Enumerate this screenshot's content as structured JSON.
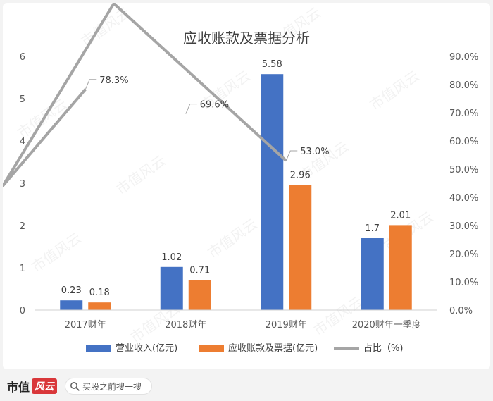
{
  "chart_data": {
    "type": "bar",
    "title": "应收账款及票据分析",
    "categories": [
      "2017财年",
      "2018财年",
      "2019财年",
      "2020财年一季度"
    ],
    "series": [
      {
        "name": "营业收入(亿元)",
        "type": "bar",
        "axis": "left",
        "color": "#4472c4",
        "values": [
          0.23,
          1.02,
          5.58,
          1.7
        ]
      },
      {
        "name": "应收账款及票据(亿元)",
        "type": "bar",
        "axis": "left",
        "color": "#ed7d31",
        "values": [
          0.18,
          0.71,
          2.96,
          2.01
        ]
      },
      {
        "name": "占比（%)",
        "type": "line",
        "axis": "right",
        "color": "#a5a5a5",
        "values": [
          78.3,
          69.6,
          53.0,
          null
        ]
      }
    ],
    "value_labels": {
      "营业收入(亿元)": [
        "0.23",
        "1.02",
        "5.58",
        "1.7"
      ],
      "应收账款及票据(亿元)": [
        "0.18",
        "0.71",
        "2.96",
        "2.01"
      ],
      "占比（%)": [
        "78.3%",
        "69.6%",
        "53.0%",
        ""
      ]
    },
    "y_left": {
      "min": 0,
      "max": 6,
      "ticks": [
        "0",
        "1",
        "2",
        "3",
        "4",
        "5",
        "6"
      ]
    },
    "y_right": {
      "min": 0,
      "max": 90,
      "ticks": [
        "0.0%",
        "10.0%",
        "20.0%",
        "30.0%",
        "40.0%",
        "50.0%",
        "60.0%",
        "70.0%",
        "80.0%",
        "90.0%"
      ]
    },
    "grid": false,
    "legend_position": "bottom"
  },
  "footer": {
    "brand": "市值",
    "brand_badge": "风云",
    "search_text": "买股之前搜一搜",
    "search_icon": "search-icon"
  },
  "watermark": "市值风云"
}
